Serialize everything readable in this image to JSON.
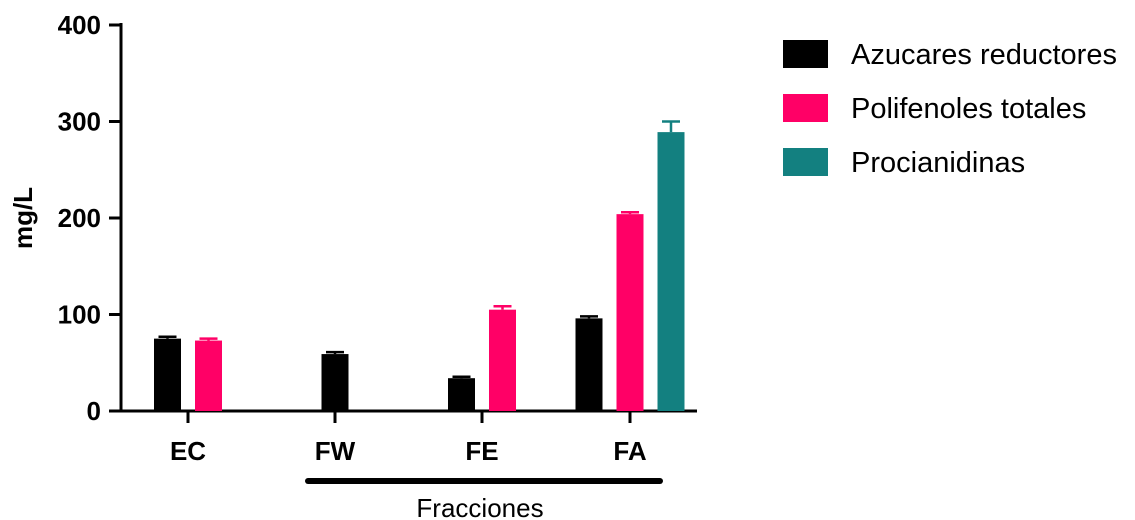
{
  "chart_data": {
    "type": "bar",
    "title": "",
    "xlabel": "Fracciones",
    "ylabel": "mg/L",
    "ylim": [
      0,
      400
    ],
    "yticks": [
      0,
      100,
      200,
      300,
      400
    ],
    "categories": [
      "EC",
      "FW",
      "FE",
      "FA"
    ],
    "series": [
      {
        "name": "Azucares reductores",
        "color": "#000000",
        "values": [
          75,
          59,
          34,
          96
        ],
        "errors": [
          2,
          2,
          1.5,
          2
        ]
      },
      {
        "name": "Polifenoles totales",
        "color": "#ff0066",
        "values": [
          73,
          null,
          105,
          204
        ],
        "errors": [
          2,
          null,
          3.5,
          2
        ]
      },
      {
        "name": "Procianidinas",
        "color": "#138080",
        "values": [
          null,
          null,
          null,
          289
        ],
        "errors": [
          null,
          null,
          null,
          11
        ]
      }
    ],
    "legend_position": "right",
    "grid": false,
    "bracket_under": [
      "FW",
      "FE",
      "FA"
    ]
  }
}
